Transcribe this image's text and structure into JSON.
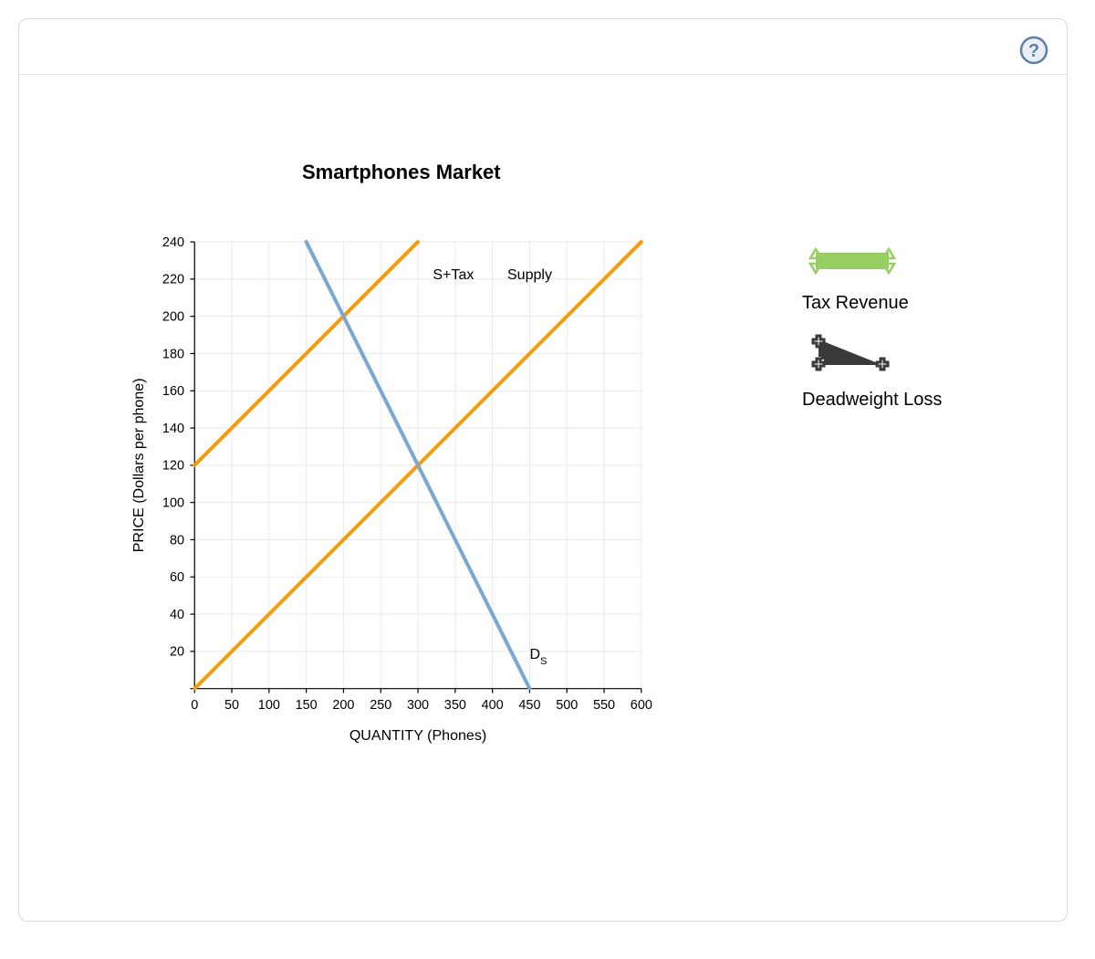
{
  "chart": {
    "title": "Smartphones Market",
    "xlabel": "QUANTITY (Phones)",
    "ylabel": "PRICE (Dollars per phone)",
    "xlim": [
      0,
      600
    ],
    "ylim": [
      0,
      240
    ],
    "xtick_step": 50,
    "ytick_step": 20,
    "xticks": [
      0,
      50,
      100,
      150,
      200,
      250,
      300,
      350,
      400,
      450,
      500,
      550,
      600
    ],
    "yticks": [
      0,
      20,
      40,
      60,
      80,
      100,
      120,
      140,
      160,
      180,
      200,
      220,
      240
    ],
    "background_color": "#ffffff",
    "grid_color": "#e5e5e5",
    "axis_color": "#000000",
    "tick_fontsize": 18,
    "label_fontsize": 20,
    "title_fontsize": 22,
    "line_width": 5,
    "curves": {
      "supply": {
        "label": "Supply",
        "color": "#f59b0b",
        "x": [
          0,
          600
        ],
        "y": [
          0,
          240
        ],
        "label_pos": {
          "x": 420,
          "y": 220
        }
      },
      "supply_tax": {
        "label": "S+Tax",
        "color": "#f59b0b",
        "x": [
          0,
          300
        ],
        "y": [
          120,
          240
        ],
        "label_pos": {
          "x": 320,
          "y": 220
        }
      },
      "demand": {
        "label": "D",
        "sub": "S",
        "color": "#7aa6cf",
        "x": [
          150,
          450
        ],
        "y": [
          240,
          0
        ],
        "label_pos": {
          "x": 450,
          "y": 16
        }
      }
    }
  },
  "legend": {
    "tax_revenue": {
      "label": "Tax Revenue",
      "color": "#97ce62",
      "shape": "rectangle-with-triangles"
    },
    "deadweight_loss": {
      "label": "Deadweight Loss",
      "color": "#3a3a3a",
      "shape": "triangle-with-plusses"
    }
  },
  "help": {
    "label": "?",
    "ring_color": "#5b7fa6",
    "text_color": "#5b7fa6",
    "bg_color": "#e9eef5"
  }
}
